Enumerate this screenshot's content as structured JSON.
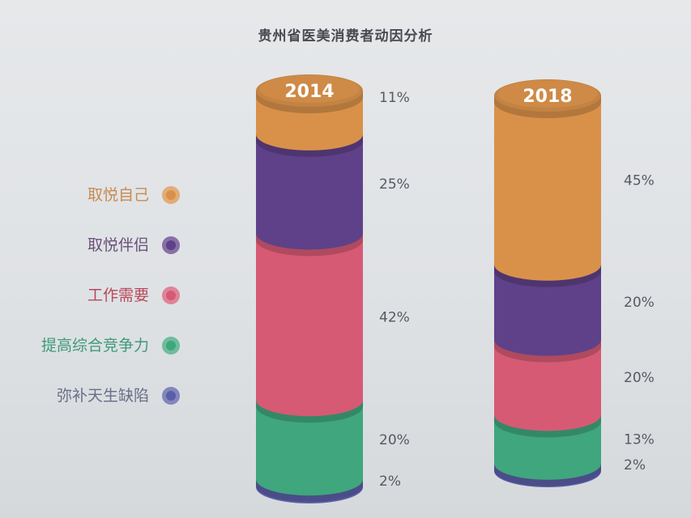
{
  "chart_data": {
    "type": "bar",
    "title": "贵州省医美消费者动因分析",
    "categories": [
      "2014",
      "2018"
    ],
    "series": [
      {
        "name": "取悦自己",
        "color": "#d9914a",
        "values": [
          11,
          45
        ]
      },
      {
        "name": "取悦伴侣",
        "color": "#5f4189",
        "values": [
          25,
          20
        ]
      },
      {
        "name": "工作需要",
        "color": "#d65a74",
        "values": [
          42,
          20
        ]
      },
      {
        "name": "提高综合竞争力",
        "color": "#3fa67d",
        "values": [
          20,
          13
        ]
      },
      {
        "name": "弥补天生缺陷",
        "color": "#5a5ea6",
        "values": [
          2,
          2
        ]
      }
    ],
    "value_labels": [
      [
        "11%",
        "25%",
        "42%",
        "20%",
        "2%"
      ],
      [
        "45%",
        "20%",
        "20%",
        "13%",
        "2%"
      ]
    ],
    "legend_position": "left",
    "stacked": true
  },
  "legend_label_colors": [
    "#c98a52",
    "#6a5078",
    "#b8485a",
    "#3f9a78",
    "#6a6e86"
  ]
}
